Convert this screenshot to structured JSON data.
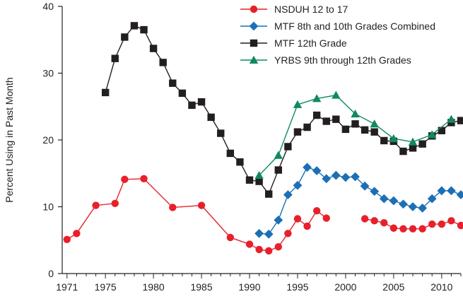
{
  "chart_data": {
    "type": "line",
    "title": "",
    "xlabel": "",
    "ylabel": "Percent Using in Past Month",
    "xlim": [
      1970.5,
      2012
    ],
    "ylim": [
      0,
      40
    ],
    "x_ticks": [
      1971,
      1975,
      1980,
      1985,
      1990,
      1995,
      2000,
      2005,
      2010
    ],
    "y_ticks": [
      0,
      10,
      20,
      30,
      40
    ],
    "legend_position": "top-right",
    "series": [
      {
        "name": "NSDUH 12 to 17",
        "color": "#e8202a",
        "marker": "circle",
        "segments": [
          [
            [
              1971,
              5.1
            ],
            [
              1972,
              6.0
            ],
            [
              1974,
              10.2
            ],
            [
              1976,
              10.5
            ],
            [
              1977,
              14.1
            ],
            [
              1979,
              14.2
            ],
            [
              1982,
              9.9
            ],
            [
              1985,
              10.2
            ],
            [
              1988,
              5.4
            ],
            [
              1990,
              4.4
            ],
            [
              1991,
              3.6
            ],
            [
              1992,
              3.4
            ],
            [
              1993,
              4.0
            ],
            [
              1994,
              6.0
            ],
            [
              1995,
              8.2
            ],
            [
              1996,
              7.1
            ],
            [
              1997,
              9.4
            ],
            [
              1998,
              8.3
            ]
          ],
          [
            [
              2002,
              8.2
            ],
            [
              2003,
              7.9
            ],
            [
              2004,
              7.6
            ],
            [
              2005,
              6.8
            ],
            [
              2006,
              6.7
            ],
            [
              2007,
              6.7
            ],
            [
              2008,
              6.7
            ],
            [
              2009,
              7.4
            ],
            [
              2010,
              7.4
            ],
            [
              2011,
              7.9
            ],
            [
              2012,
              7.2
            ]
          ]
        ]
      },
      {
        "name": "MTF 8th and 10th Grades Combined",
        "color": "#1c6fb5",
        "marker": "diamond",
        "segments": [
          [
            [
              1991,
              6.0
            ],
            [
              1992,
              5.9
            ],
            [
              1993,
              8.0
            ],
            [
              1994,
              11.8
            ],
            [
              1995,
              13.2
            ],
            [
              1996,
              15.9
            ],
            [
              1997,
              15.4
            ],
            [
              1998,
              14.2
            ],
            [
              1999,
              14.7
            ],
            [
              2000,
              14.4
            ],
            [
              2001,
              14.5
            ],
            [
              2002,
              13.1
            ],
            [
              2003,
              12.3
            ],
            [
              2004,
              11.2
            ],
            [
              2005,
              10.9
            ],
            [
              2006,
              10.4
            ],
            [
              2007,
              10.0
            ],
            [
              2008,
              9.8
            ],
            [
              2009,
              11.2
            ],
            [
              2010,
              12.4
            ],
            [
              2011,
              12.4
            ],
            [
              2012,
              11.8
            ]
          ]
        ]
      },
      {
        "name": "MTF 12th Grade",
        "color": "#231f20",
        "marker": "square",
        "segments": [
          [
            [
              1975,
              27.1
            ],
            [
              1976,
              32.2
            ],
            [
              1977,
              35.4
            ],
            [
              1978,
              37.1
            ],
            [
              1979,
              36.5
            ],
            [
              1980,
              33.7
            ],
            [
              1981,
              31.6
            ],
            [
              1982,
              28.5
            ],
            [
              1983,
              27.0
            ],
            [
              1984,
              25.2
            ],
            [
              1985,
              25.7
            ],
            [
              1986,
              23.4
            ],
            [
              1987,
              21.0
            ],
            [
              1988,
              18.0
            ],
            [
              1989,
              16.7
            ],
            [
              1990,
              14.0
            ],
            [
              1991,
              13.8
            ],
            [
              1992,
              11.9
            ],
            [
              1993,
              15.5
            ],
            [
              1994,
              19.0
            ],
            [
              1995,
              21.2
            ],
            [
              1996,
              21.9
            ],
            [
              1997,
              23.7
            ],
            [
              1998,
              22.8
            ],
            [
              1999,
              23.1
            ],
            [
              2000,
              21.6
            ],
            [
              2001,
              22.4
            ],
            [
              2002,
              21.5
            ],
            [
              2003,
              21.2
            ],
            [
              2004,
              19.9
            ],
            [
              2005,
              19.8
            ],
            [
              2006,
              18.3
            ],
            [
              2007,
              18.8
            ],
            [
              2008,
              19.4
            ],
            [
              2009,
              20.6
            ],
            [
              2010,
              21.4
            ],
            [
              2011,
              22.6
            ],
            [
              2012,
              22.9
            ]
          ]
        ]
      },
      {
        "name": "YRBS 9th through 12th Grades",
        "color": "#0f8a5f",
        "marker": "triangle",
        "segments": [
          [
            [
              1991,
              14.7
            ],
            [
              1993,
              17.7
            ],
            [
              1995,
              25.3
            ],
            [
              1997,
              26.2
            ],
            [
              1999,
              26.7
            ],
            [
              2001,
              23.9
            ],
            [
              2003,
              22.4
            ],
            [
              2005,
              20.2
            ],
            [
              2007,
              19.7
            ],
            [
              2009,
              20.8
            ],
            [
              2011,
              23.1
            ]
          ]
        ]
      }
    ]
  }
}
